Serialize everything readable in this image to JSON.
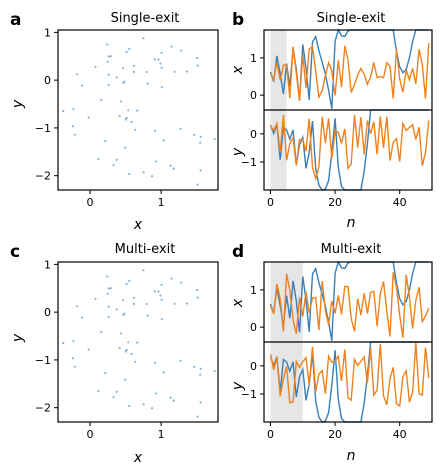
{
  "colors": {
    "blue": "#3a7fb5",
    "orange": "#f0821e",
    "shade": "#e6e6e6"
  },
  "chart_data": [
    {
      "panel": "a",
      "type": "scatter",
      "title": "Single-exit",
      "xlabel": "x",
      "ylabel": "y",
      "xlim": [
        -0.45,
        1.8
      ],
      "ylim": [
        -2.3,
        1.05
      ],
      "xticks": [
        0,
        1
      ],
      "yticks": [
        1,
        0,
        -1,
        -2
      ],
      "series": [
        {
          "color": "blue"
        },
        {
          "color": "orange"
        }
      ]
    },
    {
      "panel": "b",
      "type": "line",
      "title": "Single-exit",
      "xlabel": "n",
      "ylabel_top": "x",
      "ylabel_bottom": "y",
      "xlim": [
        -2,
        50
      ],
      "xticks": [
        0,
        20,
        40
      ],
      "top_ylim": [
        -0.4,
        1.75
      ],
      "top_yticks": [
        1,
        0
      ],
      "bottom_ylim": [
        -2.0,
        0.85
      ],
      "bottom_yticks": [
        0,
        -1
      ],
      "shaded_range": [
        0,
        5
      ],
      "n": 50,
      "series": [
        {
          "color": "blue"
        },
        {
          "color": "orange"
        }
      ]
    },
    {
      "panel": "c",
      "type": "scatter",
      "title": "Multi-exit",
      "xlabel": "x",
      "ylabel": "y",
      "xlim": [
        -0.45,
        1.8
      ],
      "ylim": [
        -2.3,
        1.05
      ],
      "xticks": [
        0,
        1
      ],
      "yticks": [
        1,
        0,
        -1,
        -2
      ],
      "series": [
        {
          "color": "blue"
        },
        {
          "color": "orange"
        }
      ]
    },
    {
      "panel": "d",
      "type": "line",
      "title": "Multi-exit",
      "xlabel": "n",
      "ylabel_top": "x",
      "ylabel_bottom": "y",
      "xlim": [
        -2,
        50
      ],
      "xticks": [
        0,
        20,
        40
      ],
      "top_ylim": [
        -0.4,
        1.75
      ],
      "top_yticks": [
        1,
        0
      ],
      "bottom_ylim": [
        -2.0,
        0.85
      ],
      "bottom_yticks": [
        0,
        -1
      ],
      "shaded_range": [
        0,
        10
      ],
      "n": 50,
      "series": [
        {
          "color": "blue"
        },
        {
          "color": "orange"
        }
      ]
    }
  ]
}
